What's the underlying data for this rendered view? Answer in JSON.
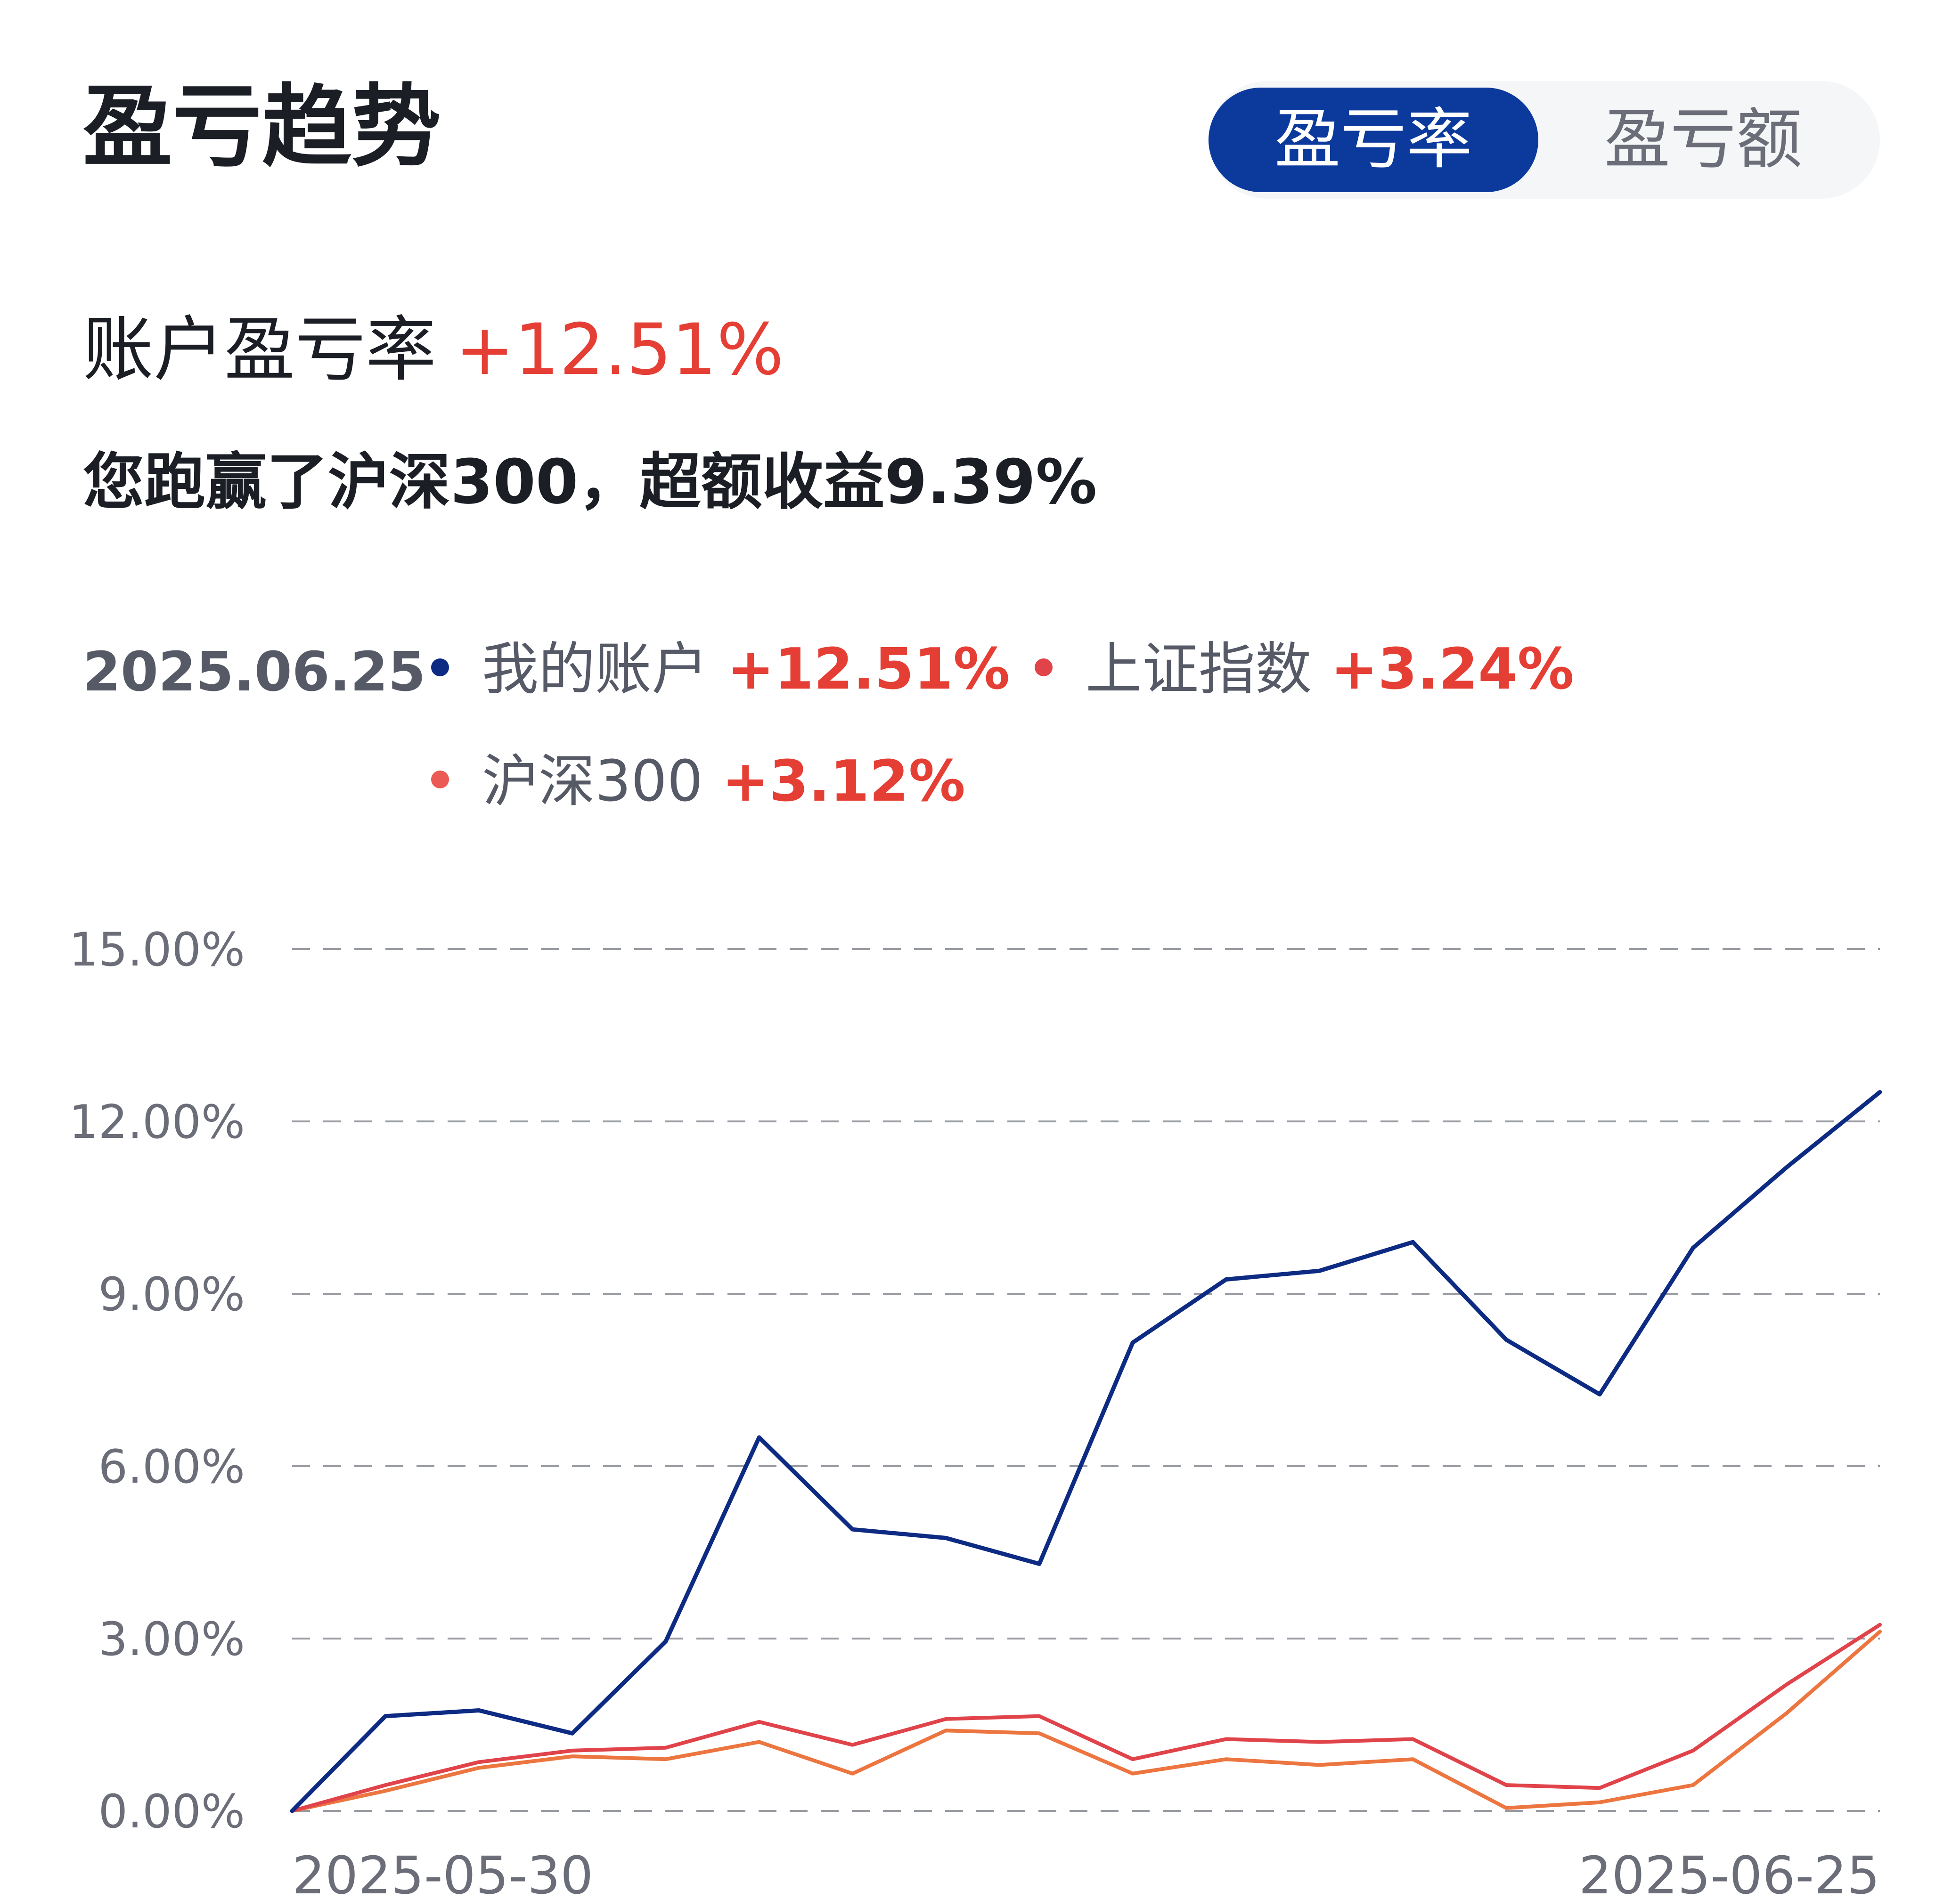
{
  "header": {
    "title": "盈亏趋势",
    "tabs": [
      {
        "label": "盈亏率",
        "active": true
      },
      {
        "label": "盈亏额",
        "active": false
      }
    ]
  },
  "summary": {
    "label": "账户盈亏率",
    "value": "+12.51%",
    "note": "您跑赢了沪深300，超额收益9.39%"
  },
  "legend": {
    "date": "2025.06.25",
    "items": [
      {
        "label": "我的账户",
        "value": "+12.51%"
      },
      {
        "label": "上证指数",
        "value": "+3.24%"
      },
      {
        "label": "沪深300",
        "value": "+3.12%"
      }
    ]
  },
  "colors": {
    "accent": "#0b3a9c",
    "positive": "#e53f35",
    "series": [
      "#0d2b83",
      "#e0434a",
      "#ec7540"
    ]
  },
  "chart_data": {
    "type": "line",
    "x_tick_labels": [
      "2025-05-30",
      "2025-06-25"
    ],
    "y_tick_labels": [
      "15.00%",
      "12.00%",
      "9.00%",
      "6.00%",
      "3.00%",
      "0.00%"
    ],
    "ylim": [
      0,
      15
    ],
    "y_ticks": [
      0,
      3,
      6,
      9,
      12,
      15
    ],
    "grid": true,
    "series": [
      {
        "name": "我的账户",
        "values": [
          0,
          1.65,
          1.75,
          1.35,
          2.95,
          6.5,
          4.9,
          4.75,
          4.3,
          8.15,
          9.25,
          9.4,
          9.9,
          8.2,
          7.25,
          9.8,
          11.2,
          12.51
        ]
      },
      {
        "name": "上证指数",
        "values": [
          0,
          0.45,
          0.85,
          1.05,
          1.1,
          1.55,
          1.15,
          1.6,
          1.65,
          0.9,
          1.25,
          1.2,
          1.25,
          0.45,
          0.4,
          1.05,
          2.2,
          3.24
        ]
      },
      {
        "name": "沪深300",
        "values": [
          0,
          0.35,
          0.75,
          0.95,
          0.9,
          1.2,
          0.65,
          1.4,
          1.35,
          0.65,
          0.9,
          0.8,
          0.9,
          0.05,
          0.15,
          0.45,
          1.7,
          3.12
        ]
      }
    ]
  }
}
